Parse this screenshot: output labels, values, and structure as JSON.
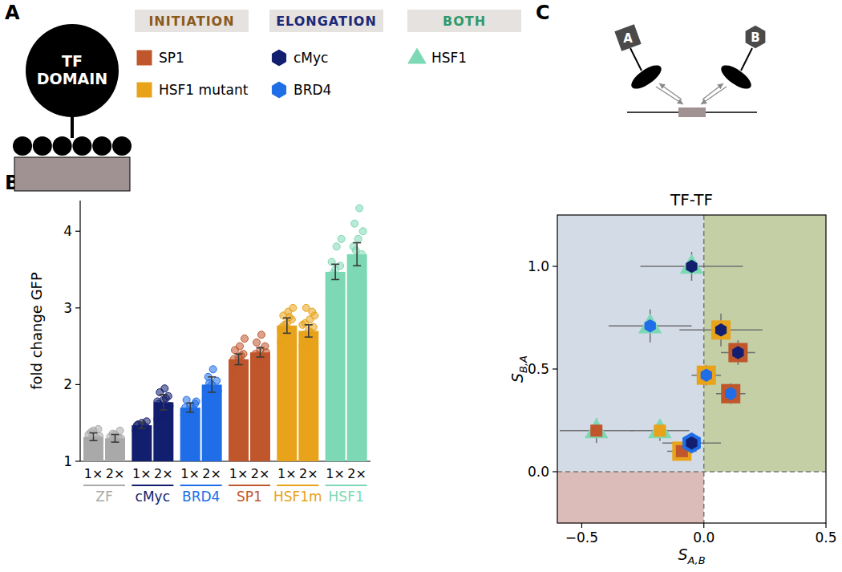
{
  "panel_labels": [
    "A",
    "B",
    "C"
  ],
  "diagram_a": {
    "domain_label": "TF DOMAIN"
  },
  "legend": {
    "groups": [
      {
        "label": "INITIATION",
        "color": "#8b5a1c",
        "items": [
          "SP1",
          "HSF1 mutant"
        ]
      },
      {
        "label": "ELONGATION",
        "color": "#1b2a78",
        "items": [
          "cMyc",
          "BRD4"
        ]
      },
      {
        "label": "BOTH",
        "color": "#2f9a6c",
        "items": [
          "HSF1"
        ]
      }
    ]
  },
  "factors": {
    "SP1": {
      "color": "#c0562b",
      "marker": "square"
    },
    "HSF1 mutant": {
      "color": "#e8a31a",
      "marker": "square"
    },
    "cMyc": {
      "color": "#121e6e",
      "marker": "hexagon"
    },
    "BRD4": {
      "color": "#1f6ee8",
      "marker": "hexagon"
    },
    "HSF1": {
      "color": "#7dd8b5",
      "marker": "triangle"
    }
  },
  "diagram_c": {
    "labels": [
      "A",
      "B"
    ]
  },
  "chart_data": [
    {
      "type": "bar",
      "ylabel": "fold change GFP",
      "categories": [
        "1×",
        "2×",
        "1×",
        "2×",
        "1×",
        "2×",
        "1×",
        "2×",
        "1×",
        "2×",
        "1×",
        "2×"
      ],
      "groups": [
        "ZF",
        "cMyc",
        "BRD4",
        "SP1",
        "HSF1m",
        "HSF1"
      ],
      "colors": [
        "#a9a9a9",
        "#a9a9a9",
        "#121e6e",
        "#121e6e",
        "#1f6ee8",
        "#1f6ee8",
        "#c0562b",
        "#c0562b",
        "#e8a31a",
        "#e8a31a",
        "#7dd8b5",
        "#7dd8b5"
      ],
      "values": [
        1.32,
        1.3,
        1.47,
        1.77,
        1.7,
        2.0,
        2.33,
        2.42,
        2.77,
        2.7,
        3.47,
        3.7
      ],
      "errors": [
        0.05,
        0.05,
        0.04,
        0.1,
        0.06,
        0.1,
        0.07,
        0.06,
        0.1,
        0.08,
        0.1,
        0.15
      ],
      "points": [
        [
          1.2,
          1.25,
          1.3,
          1.35,
          1.4,
          1.42,
          1.28,
          1.22,
          1.33,
          1.38
        ],
        [
          1.2,
          1.25,
          1.3,
          1.32,
          1.35,
          1.4,
          1.27,
          1.22,
          1.3,
          1.36
        ],
        [
          1.4,
          1.43,
          1.45,
          1.47,
          1.5,
          1.52,
          1.48
        ],
        [
          1.55,
          1.6,
          1.7,
          1.75,
          1.8,
          1.85,
          1.9,
          1.95,
          1.72,
          1.65,
          1.82,
          1.78
        ],
        [
          1.6,
          1.65,
          1.68,
          1.7,
          1.72,
          1.75,
          1.8,
          1.63,
          1.78
        ],
        [
          1.8,
          1.85,
          1.9,
          1.95,
          2.0,
          2.05,
          2.1,
          2.2,
          1.92,
          2.02,
          1.88
        ],
        [
          2.2,
          2.25,
          2.3,
          2.33,
          2.35,
          2.4,
          2.45,
          2.5,
          2.6,
          2.28,
          2.38,
          2.18
        ],
        [
          2.25,
          2.3,
          2.35,
          2.4,
          2.45,
          2.5,
          2.55,
          2.65,
          2.42,
          2.38
        ],
        [
          2.55,
          2.65,
          2.7,
          2.75,
          2.8,
          2.85,
          2.9,
          2.95,
          3.0,
          2.78,
          2.88,
          2.72
        ],
        [
          2.5,
          2.55,
          2.6,
          2.65,
          2.7,
          2.75,
          2.8,
          2.85,
          2.9,
          3.0,
          2.68,
          2.78,
          2.62,
          2.95
        ],
        [
          3.1,
          3.2,
          3.3,
          3.4,
          3.5,
          3.55,
          3.6,
          3.8,
          3.9,
          3.45,
          3.35
        ],
        [
          3.2,
          3.3,
          3.4,
          3.5,
          3.6,
          3.7,
          3.8,
          3.9,
          4.0,
          4.1,
          4.3,
          3.65,
          3.75,
          3.55
        ]
      ],
      "ylim": [
        1,
        4.4
      ],
      "yticks": [
        1,
        2,
        3,
        4
      ]
    },
    {
      "type": "scatter",
      "title": "TF-TF",
      "xlabel": {
        "text": "S",
        "subscript": "A,B"
      },
      "ylabel": {
        "text": "S",
        "subscript": "B,A"
      },
      "xlim": [
        -0.6,
        0.5
      ],
      "ylim": [
        -0.25,
        1.25
      ],
      "xticks": [
        {
          "value": -0.5,
          "label": "−0.5"
        },
        {
          "value": 0,
          "label": "0.0"
        },
        {
          "value": 0.5,
          "label": "0.5"
        }
      ],
      "yticks": [
        {
          "value": 0,
          "label": "0.0"
        },
        {
          "value": 0.5,
          "label": "0.5"
        },
        {
          "value": 1,
          "label": "1.0"
        }
      ],
      "quadrant_lines": {
        "x": 0,
        "y": 0
      },
      "points": [
        {
          "x": -0.05,
          "y": 1.0,
          "xerr": 0.21,
          "yerr": 0.07,
          "a": "HSF1",
          "b": "cMyc"
        },
        {
          "x": -0.22,
          "y": 0.71,
          "xerr": 0.17,
          "yerr": 0.08,
          "a": "HSF1",
          "b": "BRD4"
        },
        {
          "x": 0.07,
          "y": 0.69,
          "xerr": 0.17,
          "yerr": 0.08,
          "a": "HSF1 mutant",
          "b": "cMyc"
        },
        {
          "x": 0.14,
          "y": 0.58,
          "xerr": 0.07,
          "yerr": 0.06,
          "a": "SP1",
          "b": "cMyc"
        },
        {
          "x": 0.01,
          "y": 0.47,
          "xerr": 0.06,
          "yerr": 0.05,
          "a": "HSF1 mutant",
          "b": "BRD4"
        },
        {
          "x": 0.11,
          "y": 0.38,
          "xerr": 0.06,
          "yerr": 0.05,
          "a": "SP1",
          "b": "BRD4"
        },
        {
          "x": -0.44,
          "y": 0.2,
          "xerr": 0.15,
          "yerr": 0.06,
          "a": "HSF1",
          "b": "SP1"
        },
        {
          "x": -0.18,
          "y": 0.2,
          "xerr": 0.12,
          "yerr": 0.05,
          "a": "HSF1",
          "b": "HSF1 mutant"
        },
        {
          "x": -0.09,
          "y": 0.1,
          "xerr": 0.06,
          "yerr": 0.04,
          "a": "HSF1 mutant",
          "b": "SP1"
        },
        {
          "x": -0.05,
          "y": 0.14,
          "xerr": 0.12,
          "yerr": 0.04,
          "a": "BRD4",
          "b": "cMyc"
        }
      ]
    }
  ]
}
